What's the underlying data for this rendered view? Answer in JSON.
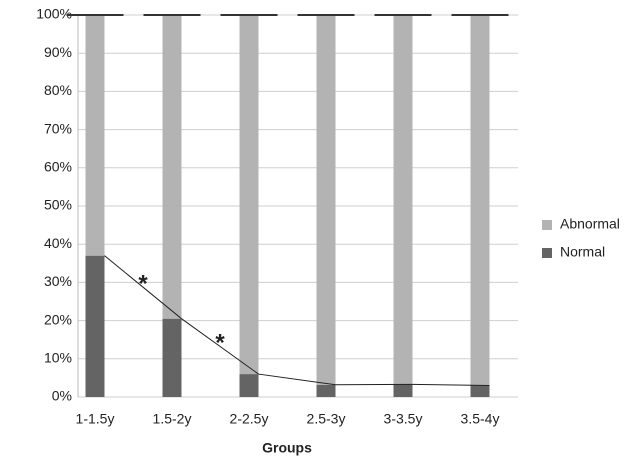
{
  "chart_data": {
    "type": "stacked_bar",
    "categories": [
      "1-1.5y",
      "1.5-2y",
      "2-2.5y",
      "2.5-3y",
      "3-3.5y",
      "3.5-4y"
    ],
    "series": [
      {
        "name": "Normal",
        "color": "#646464",
        "values": [
          37,
          20.5,
          6,
          3.2,
          3.3,
          3
        ]
      },
      {
        "name": "Abnormal",
        "color": "#b3b3b3",
        "values": [
          63,
          79.5,
          94,
          96.8,
          96.7,
          97
        ]
      }
    ],
    "xlabel": "Groups",
    "ylim": [
      0,
      100
    ],
    "yticks": [
      {
        "value": 0,
        "label": "0%"
      },
      {
        "value": 10,
        "label": "10%"
      },
      {
        "value": 20,
        "label": "20%"
      },
      {
        "value": 30,
        "label": "30%"
      },
      {
        "value": 40,
        "label": "40%"
      },
      {
        "value": 50,
        "label": "50%"
      },
      {
        "value": 60,
        "label": "60%"
      },
      {
        "value": 70,
        "label": "70%"
      },
      {
        "value": 80,
        "label": "80%"
      },
      {
        "value": 90,
        "label": "90%"
      },
      {
        "value": 100,
        "label": "100%"
      }
    ],
    "annotations": [
      "*",
      "*"
    ],
    "grid": true,
    "legend": "right"
  }
}
